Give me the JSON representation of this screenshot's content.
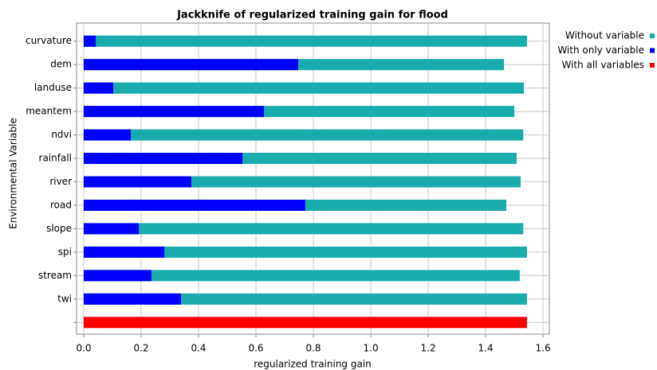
{
  "chart_data": {
    "type": "bar",
    "orientation": "horizontal",
    "title": "Jackknife of regularized training gain for flood",
    "x_label": "regularized training gain",
    "y_label": "Environmental Variable",
    "categories": [
      "curvature",
      "dem",
      "landuse",
      "meantem",
      "ndvi",
      "rainfall",
      "river",
      "road",
      "slope",
      "spi",
      "stream",
      "twi",
      null
    ],
    "series": [
      {
        "name": "Without variable",
        "color": "#1aacac",
        "values": [
          1.544,
          1.464,
          1.533,
          1.5,
          1.531,
          1.508,
          1.522,
          1.472,
          1.531,
          1.544,
          1.519,
          1.544,
          null
        ]
      },
      {
        "name": "With only variable",
        "color": "#0000ff",
        "values": [
          0.042,
          0.747,
          0.103,
          0.628,
          0.164,
          0.553,
          0.375,
          0.772,
          0.192,
          0.281,
          0.236,
          0.339,
          null
        ]
      },
      {
        "name": "With all variables",
        "color": "#ff0000",
        "values": [
          null,
          null,
          null,
          null,
          null,
          null,
          null,
          null,
          null,
          null,
          null,
          null,
          1.544
        ]
      }
    ],
    "xlim": [
      -0.025,
      1.622
    ],
    "xticks": [
      {
        "value": 0,
        "label": "0.0"
      },
      0.2,
      0.4,
      0.6,
      0.8,
      {
        "value": 1,
        "label": "1.0"
      },
      1.2,
      1.4,
      1.6
    ],
    "grid": true,
    "legend_position": "right"
  }
}
